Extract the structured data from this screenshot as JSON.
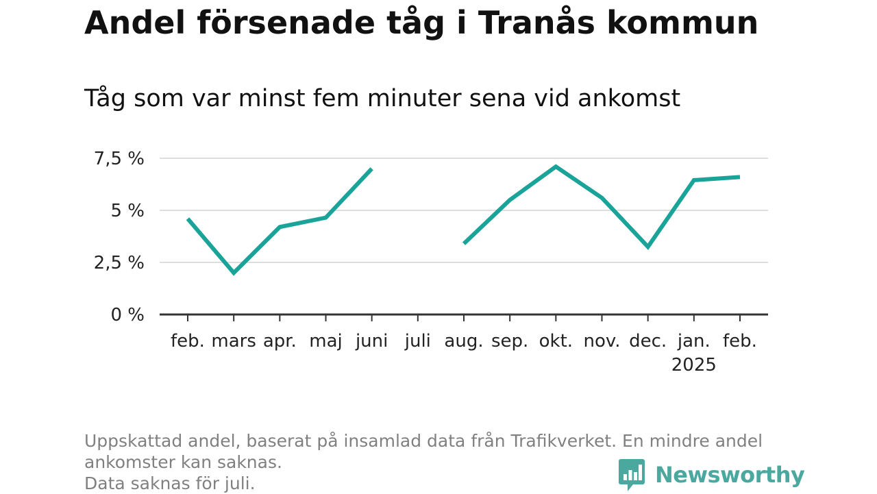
{
  "title": "Andel försenade tåg i Tranås kommun",
  "subtitle": "Tåg som var minst fem minuter sena vid ankomst",
  "footnote": [
    "Uppskattad andel, baserat på insamlad data från Trafikverket. En mindre andel",
    "ankomster kan saknas.",
    "Data saknas för juli."
  ],
  "brand": {
    "name": "Newsworthy",
    "icon": "newsworthy-logo-icon",
    "color": "#4aa89e"
  },
  "chart_data": {
    "type": "line",
    "title": "Andel försenade tåg i Tranås kommun",
    "subtitle": "Tåg som var minst fem minuter sena vid ankomst",
    "categories": [
      "feb.",
      "mars",
      "apr.",
      "maj",
      "juni",
      "juli",
      "aug.",
      "sep.",
      "okt.",
      "nov.",
      "dec.",
      "jan.",
      "feb."
    ],
    "category_sublabels": [
      "",
      "",
      "",
      "",
      "",
      "",
      "",
      "",
      "",
      "",
      "",
      "2025",
      ""
    ],
    "series": [
      {
        "values": [
          4.6,
          2.0,
          4.2,
          4.65,
          7.0,
          null,
          3.4,
          5.5,
          7.1,
          5.6,
          3.25,
          6.45,
          6.6
        ]
      }
    ],
    "yticks": [
      0,
      2.5,
      5,
      7.5
    ],
    "ytick_labels": [
      "0 %",
      "2,5 %",
      "5 %",
      "7,5 %"
    ],
    "ylim": [
      0,
      7.5
    ],
    "grid": true,
    "colors": {
      "line": "#1aa399",
      "grid": "#dddddd",
      "axis": "#333333"
    }
  }
}
